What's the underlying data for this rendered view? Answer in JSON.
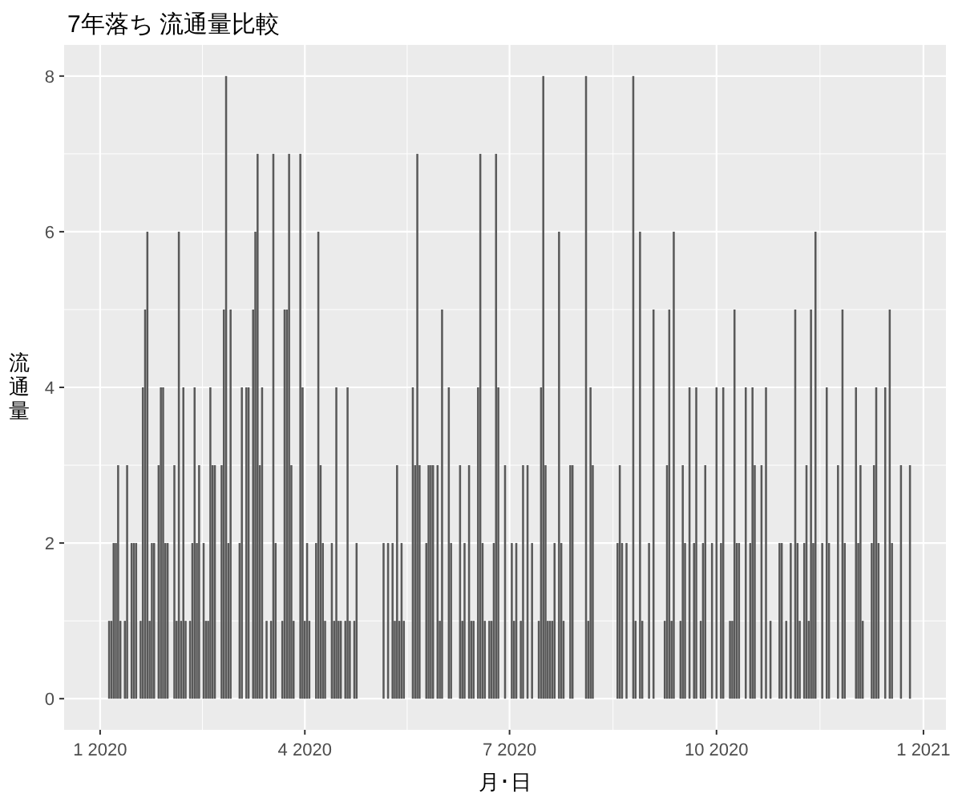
{
  "chart_data": {
    "type": "bar",
    "title": "7年落ち 流通量比較",
    "xlabel": "月･日",
    "ylabel": "流通量",
    "x": [
      "2020-01-05",
      "2020-01-06",
      "2020-01-07",
      "2020-01-08",
      "2020-01-09",
      "2020-01-10",
      "2020-01-12",
      "2020-01-13",
      "2020-01-15",
      "2020-01-16",
      "2020-01-17",
      "2020-01-19",
      "2020-01-20",
      "2020-01-21",
      "2020-01-22",
      "2020-01-23",
      "2020-01-24",
      "2020-01-25",
      "2020-01-27",
      "2020-01-28",
      "2020-01-29",
      "2020-01-30",
      "2020-01-31",
      "2020-02-03",
      "2020-02-04",
      "2020-02-05",
      "2020-02-06",
      "2020-02-07",
      "2020-02-08",
      "2020-02-10",
      "2020-02-11",
      "2020-02-12",
      "2020-02-13",
      "2020-02-14",
      "2020-02-16",
      "2020-02-17",
      "2020-02-18",
      "2020-02-19",
      "2020-02-20",
      "2020-02-21",
      "2020-02-24",
      "2020-02-25",
      "2020-02-26",
      "2020-02-27",
      "2020-02-28",
      "2020-03-03",
      "2020-03-04",
      "2020-03-06",
      "2020-03-07",
      "2020-03-09",
      "2020-03-10",
      "2020-03-11",
      "2020-03-12",
      "2020-03-13",
      "2020-03-15",
      "2020-03-17",
      "2020-03-18",
      "2020-03-19",
      "2020-03-22",
      "2020-03-23",
      "2020-03-24",
      "2020-03-25",
      "2020-03-26",
      "2020-03-27",
      "2020-03-30",
      "2020-03-31",
      "2020-04-01",
      "2020-04-02",
      "2020-04-03",
      "2020-04-06",
      "2020-04-07",
      "2020-04-08",
      "2020-04-09",
      "2020-04-10",
      "2020-04-13",
      "2020-04-14",
      "2020-04-15",
      "2020-04-16",
      "2020-04-17",
      "2020-04-19",
      "2020-04-20",
      "2020-04-21",
      "2020-04-23",
      "2020-04-24",
      "2020-05-06",
      "2020-05-08",
      "2020-05-10",
      "2020-05-11",
      "2020-05-12",
      "2020-05-13",
      "2020-05-14",
      "2020-05-15",
      "2020-05-19",
      "2020-05-20",
      "2020-05-21",
      "2020-05-22",
      "2020-05-25",
      "2020-05-26",
      "2020-05-27",
      "2020-05-28",
      "2020-05-30",
      "2020-05-31",
      "2020-06-01",
      "2020-06-04",
      "2020-06-05",
      "2020-06-09",
      "2020-06-10",
      "2020-06-11",
      "2020-06-13",
      "2020-06-14",
      "2020-06-15",
      "2020-06-17",
      "2020-06-18",
      "2020-06-19",
      "2020-06-20",
      "2020-06-22",
      "2020-06-23",
      "2020-06-24",
      "2020-06-25",
      "2020-06-26",
      "2020-06-29",
      "2020-07-02",
      "2020-07-03",
      "2020-07-04",
      "2020-07-06",
      "2020-07-07",
      "2020-07-09",
      "2020-07-11",
      "2020-07-14",
      "2020-07-15",
      "2020-07-16",
      "2020-07-17",
      "2020-07-18",
      "2020-07-19",
      "2020-07-20",
      "2020-07-21",
      "2020-07-23",
      "2020-07-24",
      "2020-07-25",
      "2020-07-28",
      "2020-07-29",
      "2020-08-04",
      "2020-08-05",
      "2020-08-06",
      "2020-08-07",
      "2020-08-18",
      "2020-08-19",
      "2020-08-20",
      "2020-08-22",
      "2020-08-25",
      "2020-08-26",
      "2020-08-28",
      "2020-08-29",
      "2020-09-01",
      "2020-09-03",
      "2020-09-08",
      "2020-09-09",
      "2020-09-10",
      "2020-09-11",
      "2020-09-12",
      "2020-09-15",
      "2020-09-16",
      "2020-09-17",
      "2020-09-19",
      "2020-09-21",
      "2020-09-22",
      "2020-09-24",
      "2020-09-25",
      "2020-09-26",
      "2020-09-29",
      "2020-10-01",
      "2020-10-03",
      "2020-10-04",
      "2020-10-07",
      "2020-10-08",
      "2020-10-09",
      "2020-10-10",
      "2020-10-11",
      "2020-10-14",
      "2020-10-16",
      "2020-10-17",
      "2020-10-18",
      "2020-10-21",
      "2020-10-23",
      "2020-10-25",
      "2020-10-29",
      "2020-10-30",
      "2020-11-01",
      "2020-11-03",
      "2020-11-05",
      "2020-11-06",
      "2020-11-07",
      "2020-11-09",
      "2020-11-10",
      "2020-11-11",
      "2020-11-12",
      "2020-11-13",
      "2020-11-14",
      "2020-11-17",
      "2020-11-19",
      "2020-11-20",
      "2020-11-24",
      "2020-11-26",
      "2020-11-27",
      "2020-12-02",
      "2020-12-03",
      "2020-12-04",
      "2020-12-05",
      "2020-12-09",
      "2020-12-10",
      "2020-12-11",
      "2020-12-12",
      "2020-12-15",
      "2020-12-17",
      "2020-12-18",
      "2020-12-22",
      "2020-12-26"
    ],
    "values": [
      1,
      1,
      2,
      2,
      3,
      1,
      1,
      3,
      2,
      2,
      2,
      1,
      4,
      5,
      6,
      1,
      2,
      2,
      3,
      4,
      4,
      2,
      2,
      3,
      1,
      6,
      1,
      4,
      1,
      1,
      2,
      4,
      2,
      3,
      2,
      1,
      1,
      4,
      3,
      3,
      3,
      5,
      8,
      2,
      5,
      2,
      4,
      4,
      4,
      5,
      6,
      7,
      3,
      4,
      1,
      1,
      7,
      2,
      1,
      5,
      5,
      7,
      3,
      1,
      7,
      4,
      1,
      2,
      1,
      2,
      6,
      3,
      2,
      1,
      2,
      1,
      4,
      1,
      1,
      1,
      4,
      1,
      1,
      2,
      2,
      2,
      2,
      1,
      3,
      1,
      2,
      1,
      4,
      3,
      7,
      3,
      2,
      3,
      3,
      3,
      3,
      1,
      5,
      4,
      2,
      3,
      1,
      2,
      3,
      1,
      1,
      4,
      7,
      2,
      1,
      1,
      1,
      2,
      7,
      4,
      3,
      2,
      1,
      2,
      1,
      3,
      3,
      2,
      1,
      4,
      8,
      3,
      1,
      1,
      1,
      2,
      6,
      2,
      1,
      3,
      3,
      8,
      1,
      4,
      3,
      2,
      3,
      2,
      2,
      8,
      1,
      6,
      1,
      2,
      5,
      1,
      3,
      5,
      1,
      6,
      1,
      3,
      2,
      4,
      2,
      4,
      1,
      2,
      3,
      2,
      4,
      2,
      4,
      1,
      1,
      5,
      2,
      2,
      4,
      2,
      4,
      3,
      3,
      4,
      1,
      2,
      2,
      1,
      2,
      5,
      2,
      1,
      2,
      3,
      1,
      5,
      2,
      6,
      2,
      4,
      2,
      3,
      5,
      2,
      4,
      2,
      3,
      1,
      2,
      3,
      4,
      2,
      4,
      5,
      2,
      3,
      3
    ],
    "color": "#595959",
    "xlim": [
      "2019-12-16",
      "2021-01-11"
    ],
    "xticks": [
      {
        "value": "2020-01-01",
        "label": "1 2020"
      },
      {
        "value": "2020-04-01",
        "label": "4 2020"
      },
      {
        "value": "2020-07-01",
        "label": "7 2020"
      },
      {
        "value": "2020-10-01",
        "label": "10 2020"
      },
      {
        "value": "2021-01-01",
        "label": "1 2021"
      }
    ],
    "ylim": [
      -0.4,
      8.4
    ],
    "yticks": [
      0,
      2,
      4,
      6,
      8
    ],
    "grid": true
  }
}
